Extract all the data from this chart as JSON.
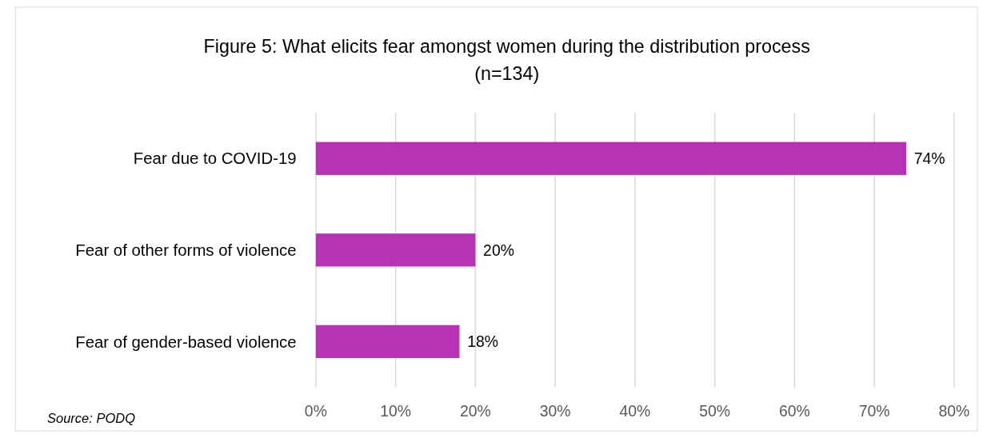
{
  "chart_data": {
    "type": "bar",
    "orientation": "horizontal",
    "title": "Figure 5: What elicits fear amongst women during the distribution process",
    "subtitle": "(n=134)",
    "categories": [
      "Fear due to COVID-19",
      "Fear of other forms of violence",
      "Fear of gender-based violence"
    ],
    "values": [
      74,
      20,
      18
    ],
    "value_labels": [
      "74%",
      "20%",
      "18%"
    ],
    "color": "#b832b5",
    "xlim": [
      0,
      80
    ],
    "xticks": [
      {
        "value": 0,
        "label": "0%"
      },
      {
        "value": 10,
        "label": "10%"
      },
      {
        "value": 20,
        "label": "20%"
      },
      {
        "value": 30,
        "label": "30%"
      },
      {
        "value": 40,
        "label": "40%"
      },
      {
        "value": 50,
        "label": "50%"
      },
      {
        "value": 60,
        "label": "60%"
      },
      {
        "value": 70,
        "label": "70%"
      },
      {
        "value": 80,
        "label": "80%"
      }
    ],
    "grid": "x",
    "annotations": [
      "Source: PODQ"
    ]
  }
}
